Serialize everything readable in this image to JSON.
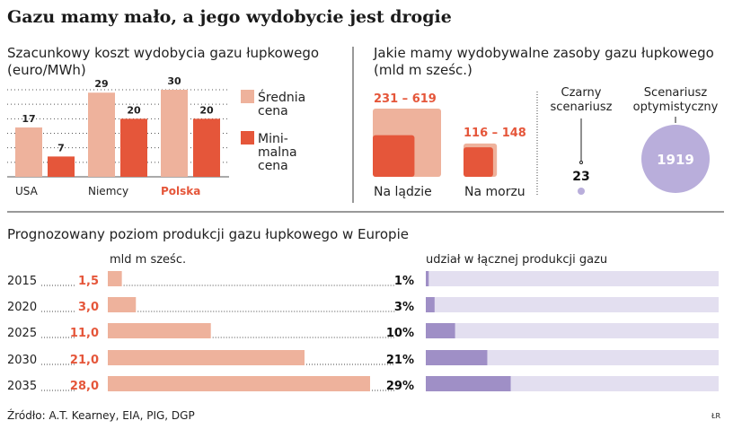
{
  "title": "Gazu mamy mało, a jego wydobycie jest drogie",
  "colors": {
    "light": "#eeb29c",
    "dark": "#e5563a",
    "red_text": "#e5563a",
    "lavender": "#b9aedb",
    "track": "#e3dff0",
    "share_fill": "#9f8fc6"
  },
  "chart_data": [
    {
      "type": "bar",
      "title": "Szacunkowy koszt wydobycia gazu łupkowego",
      "subtitle": "(euro/MWh)",
      "categories": [
        "USA",
        "Niemcy",
        "Polska"
      ],
      "highlight_category": "Polska",
      "series": [
        {
          "name": "Średnia cena",
          "name_lines": [
            "Średnia",
            "cena"
          ],
          "values": [
            17,
            29,
            30
          ]
        },
        {
          "name": "Minimalna cena",
          "name_lines": [
            "Mini-",
            "malna",
            "cena"
          ],
          "values": [
            7,
            20,
            20
          ]
        }
      ],
      "ylim": [
        0,
        30
      ],
      "grid": true,
      "legend": "right"
    },
    {
      "type": "area",
      "title": "Jakie mamy wydobywalne zasoby gazu łupkowego",
      "subtitle": "(mld m sześc.)",
      "items": [
        {
          "label": "Na lądzie",
          "range_label": "231 – 619",
          "min": 231,
          "max": 619
        },
        {
          "label": "Na morzu",
          "range_label": "116 – 148",
          "min": 116,
          "max": 148
        }
      ],
      "scenarios": [
        {
          "label_lines": [
            "Czarny",
            "scenariusz"
          ],
          "value": "23"
        },
        {
          "label_lines": [
            "Scenariusz",
            "optymistyczny"
          ],
          "value": "1919"
        }
      ]
    },
    {
      "type": "bar",
      "title": "Prognozowany poziom produkcji gazu łupkowego w Europie",
      "unit_label": "mld m sześc.",
      "share_label": "udział w łącznej produkcji gazu",
      "categories": [
        "2015",
        "2020",
        "2025",
        "2030",
        "2035"
      ],
      "values": [
        1.5,
        3.0,
        11.0,
        21.0,
        28.0
      ],
      "value_labels": [
        "1,5",
        "3,0",
        "11,0",
        "21,0",
        "28,0"
      ],
      "shares": [
        1,
        3,
        10,
        21,
        29
      ],
      "share_labels": [
        "1%",
        "3%",
        "10%",
        "21%",
        "29%"
      ]
    }
  ],
  "footer": {
    "source": "Źródło: A.T. Kearney, EIA, PIG, DGP",
    "credit": "ŁR"
  }
}
